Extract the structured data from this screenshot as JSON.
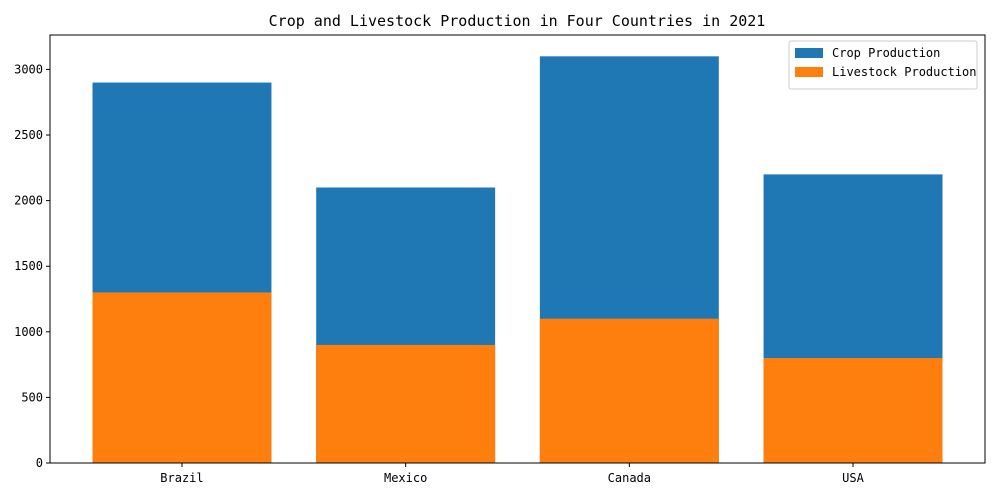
{
  "chart_data": {
    "type": "bar",
    "title": "Crop and Livestock Production in Four Countries in 2021",
    "categories": [
      "Brazil",
      "Mexico",
      "Canada",
      "USA"
    ],
    "series": [
      {
        "name": "Crop Production",
        "values": [
          2900,
          2100,
          3100,
          2200
        ],
        "color": "#1f77b4"
      },
      {
        "name": "Livestock Production",
        "values": [
          1300,
          900,
          1100,
          800
        ],
        "color": "#ff7f0e"
      }
    ],
    "ylim": [
      0,
      3262.5
    ],
    "yticks": [
      0,
      500,
      1000,
      1500,
      2000,
      2500,
      3000
    ],
    "legend_position": "top-right",
    "grid": false
  }
}
